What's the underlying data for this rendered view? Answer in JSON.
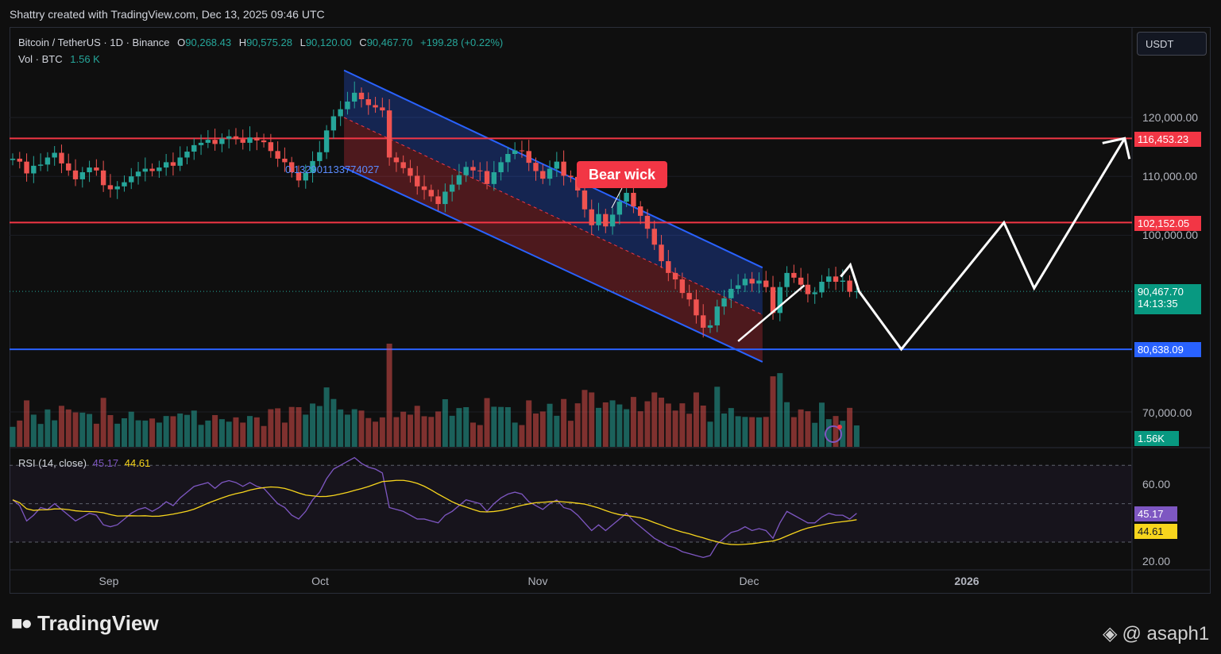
{
  "header": {
    "credit": "Shattry created with TradingView.com, Dec 13, 2025 09:46 UTC"
  },
  "legend": {
    "symbol": "Bitcoin / TetherUS · 1D · Binance",
    "o_label": "O",
    "o": "90,268.43",
    "h_label": "H",
    "h": "90,575.28",
    "l_label": "L",
    "l": "90,120.00",
    "c_label": "C",
    "c": "90,467.70",
    "change": "+199.28 (+0.22%)",
    "vol_label": "Vol · BTC",
    "vol": "1.56 K"
  },
  "currency_button": "USDT",
  "price_axis": [
    "120,000.00",
    "110,000.00",
    "100,000.00",
    "70,000.00"
  ],
  "price_tags": {
    "res1": "116,453.23",
    "res2": "102,152.05",
    "last": "90,467.70",
    "countdown": "14:13:35",
    "support": "80,638.09",
    "volume": "1.56K"
  },
  "annotations": {
    "bear_wick": "Bear wick",
    "fib_label": "0.132901133774027"
  },
  "rsi": {
    "label": "RSI (14, close)",
    "value": "45.17",
    "ma": "44.61",
    "axis": [
      "60.00",
      "20.00"
    ]
  },
  "x_axis": [
    "Sep",
    "Oct",
    "Nov",
    "Dec",
    "2026"
  ],
  "footer": {
    "brand": "TradingView",
    "author": "@ asaph1"
  },
  "colors": {
    "up": "#26a69a",
    "down": "#ef5350",
    "resistance": "#f23645",
    "support": "#2962ff",
    "rsi": "#7e57c2",
    "rsi_ma": "#f7d51d"
  },
  "chart_data": {
    "type": "candlestick",
    "title": "Bitcoin / TetherUS · 1D · Binance",
    "y_range": [
      70000,
      125000
    ],
    "rsi_range": [
      20,
      80
    ],
    "horizontal_levels": [
      116453.23,
      102152.05,
      80638.09
    ],
    "x_markers": [
      "Sep",
      "Oct",
      "Nov",
      "Dec",
      "2026"
    ],
    "closes": [
      113000,
      112500,
      110500,
      111800,
      112000,
      113200,
      114000,
      112200,
      111000,
      109500,
      110700,
      111500,
      111000,
      108500,
      107800,
      108300,
      109000,
      110000,
      110800,
      111300,
      110900,
      111500,
      112400,
      111800,
      113200,
      114200,
      115300,
      115700,
      116200,
      115500,
      116400,
      116800,
      116300,
      115700,
      116600,
      116100,
      115800,
      114300,
      113000,
      112400,
      110700,
      109300,
      110600,
      112600,
      114100,
      117800,
      120200,
      121400,
      122700,
      124200,
      123100,
      122100,
      121700,
      121200,
      113200,
      112400,
      111400,
      110100,
      108300,
      107700,
      106600,
      105300,
      107400,
      108600,
      110200,
      111600,
      111000,
      110900,
      108700,
      110700,
      112400,
      113800,
      114400,
      114300,
      112300,
      110900,
      109600,
      111300,
      112500,
      110100,
      109900,
      107600,
      104400,
      101700,
      103600,
      101500,
      103500,
      105700,
      107200,
      104900,
      103300,
      101100,
      98400,
      95600,
      93600,
      92500,
      90200,
      89100,
      86400,
      84300,
      84700,
      87900,
      89300,
      90900,
      91500,
      92600,
      91800,
      92300,
      91200,
      86800,
      91200,
      93600,
      92800,
      91600,
      90000,
      90300,
      92100,
      93000,
      92100,
      92300,
      90400,
      90468
    ],
    "rsi_values": [
      52,
      49,
      41,
      44,
      48,
      47,
      50,
      47,
      44,
      41,
      43,
      45,
      44,
      39,
      38,
      39,
      42,
      45,
      47,
      48,
      46,
      48,
      51,
      49,
      53,
      56,
      59,
      60,
      61,
      58,
      61,
      62,
      61,
      59,
      61,
      59,
      58,
      54,
      50,
      48,
      44,
      42,
      46,
      52,
      56,
      63,
      68,
      70,
      72,
      74,
      71,
      69,
      68,
      66,
      48,
      47,
      46,
      44,
      42,
      42,
      41,
      40,
      44,
      46,
      49,
      52,
      51,
      50,
      46,
      50,
      53,
      55,
      56,
      55,
      51,
      49,
      47,
      50,
      52,
      48,
      47,
      44,
      40,
      36,
      39,
      36,
      39,
      42,
      45,
      41,
      38,
      35,
      32,
      30,
      28,
      27,
      25,
      24,
      23,
      22,
      23,
      29,
      32,
      35,
      36,
      38,
      36,
      37,
      36,
      32,
      40,
      46,
      44,
      42,
      40,
      40,
      43,
      45,
      44,
      44,
      42,
      45
    ],
    "projection": [
      [
        1,
        90467.7
      ],
      [
        8,
        80638.09
      ],
      [
        25,
        102152.05
      ],
      [
        30,
        91000
      ],
      [
        45,
        116453.23
      ]
    ]
  }
}
